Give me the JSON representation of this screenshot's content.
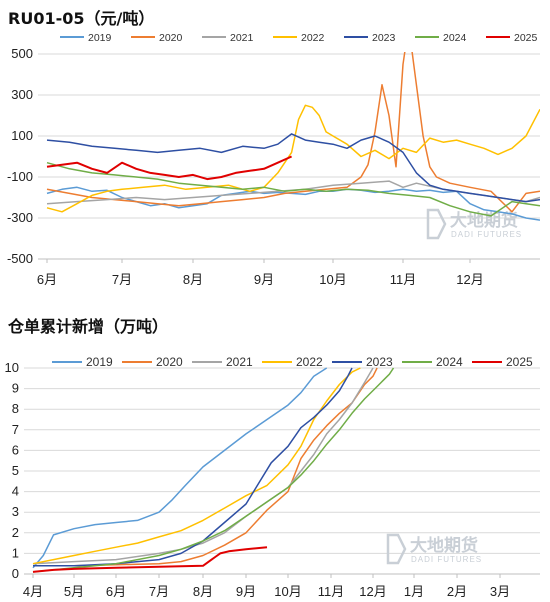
{
  "chart_data": [
    {
      "type": "line",
      "title": "RU01-05（元/吨）",
      "y_tick_labels": [
        "500",
        "300",
        "100",
        "-100",
        "-300",
        "-500"
      ],
      "y_tick_values": [
        500,
        300,
        100,
        -100,
        -300,
        -500
      ],
      "ylim": [
        -500,
        500
      ],
      "x_tick_labels": [
        "6月",
        "7月",
        "8月",
        "9月",
        "10月",
        "11月",
        "12月"
      ],
      "x_tick_months": [
        0,
        1,
        2,
        3,
        4,
        5,
        6
      ],
      "xlim": [
        0,
        7
      ],
      "grid": "horizontal",
      "legend_position": "top",
      "series": [
        {
          "name": "2019",
          "color": "#5b9bd5",
          "x": [
            0,
            0.2,
            0.4,
            0.6,
            0.8,
            1,
            1.2,
            1.4,
            1.6,
            1.8,
            2,
            2.2,
            2.4,
            2.6,
            2.8,
            3,
            3.2,
            3.4,
            3.6,
            3.8,
            4,
            4.2,
            4.4,
            4.6,
            4.8,
            5,
            5.2,
            5.4,
            5.6,
            5.8,
            6,
            6.2,
            6.4,
            6.6,
            6.8,
            7
          ],
          "y": [
            -180,
            -160,
            -150,
            -170,
            -165,
            -200,
            -220,
            -240,
            -230,
            -250,
            -240,
            -230,
            -190,
            -180,
            -170,
            -180,
            -175,
            -180,
            -185,
            -170,
            -170,
            -160,
            -165,
            -175,
            -170,
            -160,
            -170,
            -165,
            -175,
            -170,
            -230,
            -260,
            -270,
            -280,
            -300,
            -310
          ]
        },
        {
          "name": "2020",
          "color": "#ed7d31",
          "x": [
            0,
            0.3,
            0.6,
            0.9,
            1.2,
            1.5,
            1.8,
            2.1,
            2.4,
            2.7,
            3,
            3.3,
            3.6,
            3.9,
            4.2,
            4.4,
            4.5,
            4.6,
            4.7,
            4.8,
            4.9,
            5,
            5.05,
            5.1,
            5.2,
            5.3,
            5.4,
            5.5,
            5.7,
            6,
            6.3,
            6.6,
            6.8,
            7
          ],
          "y": [
            -160,
            -180,
            -200,
            -210,
            -220,
            -230,
            -240,
            -230,
            -220,
            -210,
            -200,
            -180,
            -170,
            -160,
            -150,
            -100,
            -40,
            120,
            350,
            200,
            -50,
            450,
            560,
            600,
            350,
            100,
            -50,
            -100,
            -130,
            -150,
            -170,
            -270,
            -180,
            -170
          ]
        },
        {
          "name": "2021",
          "color": "#a5a5a5",
          "x": [
            0,
            0.4,
            0.8,
            1.2,
            1.6,
            2,
            2.4,
            2.8,
            3.2,
            3.6,
            4,
            4.4,
            4.8,
            5,
            5.2,
            5.6,
            6,
            6.4,
            6.8,
            7
          ],
          "y": [
            -230,
            -220,
            -210,
            -200,
            -210,
            -200,
            -190,
            -180,
            -170,
            -160,
            -140,
            -130,
            -120,
            -150,
            -130,
            -160,
            -180,
            -200,
            -220,
            -200
          ]
        },
        {
          "name": "2022",
          "color": "#ffc000",
          "x": [
            0,
            0.2,
            0.4,
            0.6,
            0.8,
            1,
            1.3,
            1.6,
            1.9,
            2.2,
            2.5,
            2.8,
            3,
            3.2,
            3.4,
            3.5,
            3.6,
            3.7,
            3.8,
            3.9,
            4,
            4.2,
            4.4,
            4.6,
            4.8,
            5,
            5.2,
            5.4,
            5.6,
            5.8,
            6,
            6.2,
            6.4,
            6.6,
            6.8,
            7
          ],
          "y": [
            -250,
            -270,
            -230,
            -190,
            -170,
            -160,
            -150,
            -140,
            -160,
            -150,
            -140,
            -170,
            -150,
            -80,
            20,
            180,
            250,
            240,
            200,
            120,
            100,
            60,
            0,
            30,
            -10,
            40,
            20,
            90,
            70,
            80,
            60,
            40,
            10,
            40,
            100,
            230
          ]
        },
        {
          "name": "2023",
          "color": "#2e4fa3",
          "x": [
            0,
            0.3,
            0.6,
            0.9,
            1.2,
            1.5,
            1.8,
            2.1,
            2.4,
            2.7,
            3,
            3.2,
            3.4,
            3.6,
            3.8,
            4,
            4.2,
            4.4,
            4.6,
            4.8,
            5,
            5.2,
            5.4,
            5.6,
            5.8,
            6,
            6.2,
            6.4,
            6.6,
            6.8,
            7
          ],
          "y": [
            80,
            70,
            50,
            40,
            30,
            20,
            30,
            40,
            20,
            50,
            40,
            60,
            110,
            80,
            70,
            60,
            40,
            80,
            100,
            70,
            20,
            -80,
            -140,
            -160,
            -170,
            -180,
            -190,
            -200,
            -210,
            -220,
            -210
          ]
        },
        {
          "name": "2024",
          "color": "#70ad47",
          "x": [
            0,
            0.3,
            0.6,
            0.9,
            1.2,
            1.5,
            1.8,
            2.1,
            2.4,
            2.7,
            3,
            3.3,
            3.6,
            3.9,
            4.2,
            4.5,
            4.8,
            5.1,
            5.4,
            5.7,
            6,
            6.3,
            6.6,
            6.8,
            7
          ],
          "y": [
            -30,
            -60,
            -80,
            -90,
            -100,
            -110,
            -130,
            -140,
            -150,
            -160,
            -150,
            -170,
            -160,
            -170,
            -160,
            -165,
            -180,
            -190,
            -200,
            -240,
            -270,
            -290,
            -220,
            -230,
            -240
          ]
        },
        {
          "name": "2025",
          "color": "#e00000",
          "x": [
            0,
            0.2,
            0.4,
            0.6,
            0.8,
            1,
            1.2,
            1.4,
            1.6,
            1.8,
            2,
            2.2,
            2.4,
            2.6,
            2.8,
            3,
            3.2,
            3.4
          ],
          "y": [
            -50,
            -40,
            -30,
            -60,
            -80,
            -30,
            -60,
            -80,
            -90,
            -100,
            -90,
            -110,
            -100,
            -80,
            -70,
            -60,
            -30,
            0
          ]
        }
      ],
      "watermark_cn": "大地期货",
      "watermark_en": "DADI FUTURES"
    },
    {
      "type": "line",
      "title": "仓单累计新增（万吨）",
      "y_tick_labels": [
        "10",
        "9",
        "8",
        "7",
        "6",
        "5",
        "4",
        "3",
        "2",
        "1",
        "0"
      ],
      "y_tick_values": [
        10,
        9,
        8,
        7,
        6,
        5,
        4,
        3,
        2,
        1,
        0
      ],
      "ylim": [
        0,
        10
      ],
      "x_tick_labels": [
        "4月",
        "5月",
        "6月",
        "7月",
        "8月",
        "9月",
        "10月",
        "11月",
        "12月",
        "1月",
        "2月",
        "3月"
      ],
      "x_tick_months": [
        0,
        1,
        2,
        3,
        4,
        5,
        6,
        7,
        8,
        9,
        10,
        11
      ],
      "xlim": [
        0,
        11.8
      ],
      "grid": "horizontal",
      "legend_position": "top",
      "series": [
        {
          "name": "2019",
          "color": "#5b9bd5",
          "x": [
            0,
            0.25,
            0.5,
            1,
            1.5,
            2,
            2.5,
            3,
            3.3,
            3.6,
            4,
            4.5,
            5,
            5.5,
            6,
            6.3,
            6.6,
            6.9
          ],
          "y": [
            0.3,
            0.9,
            1.9,
            2.2,
            2.4,
            2.5,
            2.6,
            3.0,
            3.6,
            4.3,
            5.2,
            6.0,
            6.8,
            7.5,
            8.2,
            8.8,
            9.6,
            10
          ]
        },
        {
          "name": "2020",
          "color": "#ed7d31",
          "x": [
            0,
            1,
            2,
            3,
            3.5,
            4,
            4.5,
            5,
            5.5,
            6,
            6.3,
            6.6,
            6.9,
            7.2,
            7.5,
            7.8,
            8,
            8.1
          ],
          "y": [
            0.4,
            0.4,
            0.45,
            0.5,
            0.6,
            0.9,
            1.4,
            2.0,
            3.1,
            4.0,
            5.6,
            6.5,
            7.2,
            7.8,
            8.3,
            9.2,
            9.6,
            10
          ]
        },
        {
          "name": "2021",
          "color": "#a5a5a5",
          "x": [
            0,
            1,
            2,
            3,
            3.5,
            4,
            4.5,
            5,
            5.5,
            6,
            6.3,
            6.6,
            6.9,
            7.2,
            7.5,
            7.8,
            8
          ],
          "y": [
            0.5,
            0.6,
            0.7,
            1.0,
            1.2,
            1.5,
            2.0,
            2.8,
            3.5,
            4.2,
            5.0,
            5.8,
            6.8,
            7.5,
            8.3,
            9.3,
            10
          ]
        },
        {
          "name": "2022",
          "color": "#ffc000",
          "x": [
            0,
            0.5,
            1,
            1.5,
            2,
            2.5,
            3,
            3.5,
            4,
            4.5,
            5,
            5.5,
            6,
            6.3,
            6.6,
            6.9,
            7.2,
            7.5,
            7.7
          ],
          "y": [
            0.5,
            0.7,
            0.9,
            1.1,
            1.3,
            1.5,
            1.8,
            2.1,
            2.6,
            3.2,
            3.8,
            4.3,
            5.3,
            6.2,
            7.5,
            8.4,
            9.2,
            9.8,
            10
          ]
        },
        {
          "name": "2023",
          "color": "#2e4fa3",
          "x": [
            0,
            1,
            2,
            3,
            3.5,
            4,
            4.5,
            5,
            5.3,
            5.6,
            6,
            6.3,
            6.6,
            6.9,
            7.2,
            7.4,
            7.5
          ],
          "y": [
            0.4,
            0.4,
            0.5,
            0.7,
            1.0,
            1.6,
            2.5,
            3.4,
            4.4,
            5.4,
            6.2,
            7.1,
            7.6,
            8.2,
            8.9,
            9.6,
            10
          ]
        },
        {
          "name": "2024",
          "color": "#70ad47",
          "x": [
            0,
            1,
            2,
            3,
            3.5,
            4,
            4.5,
            5,
            5.5,
            6,
            6.3,
            6.6,
            6.9,
            7.2,
            7.5,
            7.8,
            8.1,
            8.4,
            8.5
          ],
          "y": [
            0.1,
            0.3,
            0.5,
            0.9,
            1.2,
            1.6,
            2.1,
            2.8,
            3.5,
            4.2,
            4.8,
            5.5,
            6.3,
            7.0,
            7.8,
            8.5,
            9.1,
            9.7,
            10
          ]
        },
        {
          "name": "2025",
          "color": "#e00000",
          "x": [
            0,
            0.5,
            1,
            2,
            3,
            4,
            4.2,
            4.3,
            4.4,
            4.6,
            5,
            5.5
          ],
          "y": [
            0.1,
            0.2,
            0.25,
            0.3,
            0.35,
            0.4,
            0.7,
            0.85,
            1.0,
            1.1,
            1.2,
            1.3
          ]
        }
      ],
      "watermark_cn": "大地期货",
      "watermark_en": "DADI FUTURES"
    }
  ]
}
